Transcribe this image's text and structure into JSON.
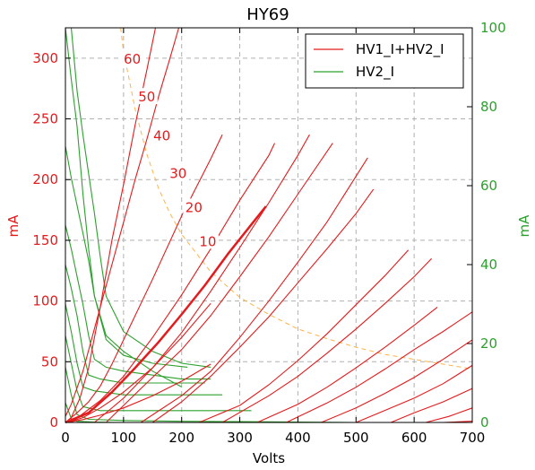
{
  "chart_data": {
    "type": "line",
    "title": "HY69",
    "xlabel": "Volts",
    "ylabel_left": "mA",
    "ylabel_right": "mA",
    "xlim": [
      0,
      700
    ],
    "ylim_left": [
      0,
      325
    ],
    "ylim_right": [
      0,
      100
    ],
    "x_ticks": [
      0,
      100,
      200,
      300,
      400,
      500,
      600,
      700
    ],
    "y_ticks_left": [
      0,
      50,
      100,
      150,
      200,
      250,
      300
    ],
    "y_ticks_right": [
      0,
      20,
      40,
      60,
      80,
      100
    ],
    "grid": true,
    "legend_placement": "top-right",
    "colors": {
      "red": "#e41a1c",
      "green": "#2ca02c",
      "orange_dashed": "#ffb347",
      "left_axis": "#e41a1c",
      "right_axis": "#2ca02c"
    },
    "legend": [
      {
        "label": "HV1_I+HV2_I",
        "color": "#e41a1c"
      },
      {
        "label": "HV2_I",
        "color": "#2ca02c"
      }
    ],
    "curve_labels": [
      {
        "text": "60",
        "x": 115,
        "y": 299
      },
      {
        "text": "50",
        "x": 140,
        "y": 268
      },
      {
        "text": "40",
        "x": 166,
        "y": 236
      },
      {
        "text": "30",
        "x": 194,
        "y": 205
      },
      {
        "text": "20",
        "x": 221,
        "y": 177
      },
      {
        "text": "10",
        "x": 245,
        "y": 149
      }
    ],
    "red_series": [
      {
        "values": [
          [
            0,
            0
          ],
          [
            10,
            0.7
          ],
          [
            30,
            2.4
          ],
          [
            60,
            6
          ],
          [
            100,
            12
          ],
          [
            150,
            22
          ],
          [
            200,
            34
          ],
          [
            250,
            48
          ]
        ]
      },
      {
        "values": [
          [
            0,
            0
          ],
          [
            10,
            1
          ],
          [
            30,
            4
          ],
          [
            60,
            12
          ],
          [
            100,
            25
          ],
          [
            150,
            45
          ],
          [
            200,
            70
          ],
          [
            250,
            98
          ]
        ]
      },
      {
        "values": [
          [
            0,
            0
          ],
          [
            10,
            4
          ],
          [
            25,
            20
          ],
          [
            40,
            45
          ],
          [
            60,
            95
          ],
          [
            80,
            150
          ],
          [
            100,
            196
          ],
          [
            120,
            245
          ],
          [
            140,
            290
          ],
          [
            155,
            325
          ]
        ]
      },
      {
        "values": [
          [
            0,
            5
          ],
          [
            10,
            15
          ],
          [
            30,
            42
          ],
          [
            60,
            95
          ],
          [
            80,
            130
          ],
          [
            100,
            165
          ],
          [
            120,
            200
          ],
          [
            140,
            233
          ],
          [
            160,
            268
          ],
          [
            180,
            300
          ],
          [
            195,
            325
          ]
        ]
      },
      {
        "values": [
          [
            0,
            0
          ],
          [
            20,
            8
          ],
          [
            40,
            17
          ],
          [
            60,
            30
          ],
          [
            80,
            48
          ],
          [
            100,
            68
          ],
          [
            150,
            118
          ],
          [
            200,
            170
          ],
          [
            250,
            217
          ],
          [
            270,
            237
          ]
        ]
      },
      {
        "values": [
          [
            10,
            0
          ],
          [
            60,
            18
          ],
          [
            100,
            38
          ],
          [
            150,
            70
          ],
          [
            200,
            105
          ],
          [
            250,
            143
          ],
          [
            300,
            183
          ],
          [
            350,
            220
          ],
          [
            360,
            230
          ]
        ]
      },
      {
        "values": [
          [
            50,
            0
          ],
          [
            100,
            20
          ],
          [
            150,
            45
          ],
          [
            200,
            74
          ],
          [
            250,
            108
          ],
          [
            300,
            144
          ],
          [
            350,
            181
          ],
          [
            400,
            220
          ],
          [
            420,
            237
          ]
        ]
      },
      {
        "values": [
          [
            70,
            0
          ],
          [
            130,
            28
          ],
          [
            200,
            60
          ],
          [
            250,
            88
          ],
          [
            300,
            120
          ],
          [
            350,
            153
          ],
          [
            400,
            188
          ],
          [
            460,
            230
          ]
        ]
      },
      {
        "values": [
          [
            130,
            0
          ],
          [
            200,
            22
          ],
          [
            250,
            42
          ],
          [
            300,
            70
          ],
          [
            350,
            100
          ],
          [
            400,
            132
          ],
          [
            450,
            165
          ],
          [
            520,
            218
          ]
        ]
      },
      {
        "values": [
          [
            150,
            0
          ],
          [
            200,
            17
          ],
          [
            250,
            38
          ],
          [
            300,
            62
          ],
          [
            350,
            87
          ],
          [
            400,
            115
          ],
          [
            450,
            143
          ],
          [
            500,
            172
          ],
          [
            530,
            192
          ]
        ]
      },
      {
        "values": [
          [
            230,
            0
          ],
          [
            300,
            14
          ],
          [
            350,
            31
          ],
          [
            400,
            51
          ],
          [
            450,
            73
          ],
          [
            500,
            97
          ],
          [
            550,
            121
          ],
          [
            590,
            142
          ]
        ]
      },
      {
        "values": [
          [
            270,
            0
          ],
          [
            350,
            22
          ],
          [
            400,
            38
          ],
          [
            450,
            57
          ],
          [
            500,
            77
          ],
          [
            550,
            98
          ],
          [
            600,
            120
          ],
          [
            630,
            135
          ]
        ]
      },
      {
        "values": [
          [
            330,
            0
          ],
          [
            400,
            15
          ],
          [
            450,
            29
          ],
          [
            500,
            45
          ],
          [
            550,
            62
          ],
          [
            600,
            80
          ],
          [
            640,
            95
          ]
        ]
      },
      {
        "values": [
          [
            380,
            0
          ],
          [
            450,
            16
          ],
          [
            500,
            29
          ],
          [
            550,
            44
          ],
          [
            600,
            60
          ],
          [
            650,
            75
          ],
          [
            700,
            91
          ]
        ]
      },
      {
        "values": [
          [
            440,
            0
          ],
          [
            500,
            12
          ],
          [
            550,
            24
          ],
          [
            600,
            37
          ],
          [
            650,
            52
          ],
          [
            700,
            68
          ]
        ]
      },
      {
        "values": [
          [
            500,
            0
          ],
          [
            550,
            10
          ],
          [
            600,
            20
          ],
          [
            650,
            32
          ],
          [
            700,
            47
          ]
        ]
      },
      {
        "values": [
          [
            560,
            0
          ],
          [
            600,
            8
          ],
          [
            650,
            17
          ],
          [
            700,
            28
          ]
        ]
      },
      {
        "values": [
          [
            620,
            0
          ],
          [
            660,
            5
          ],
          [
            700,
            12
          ]
        ]
      },
      {
        "values": [
          [
            650,
            0
          ],
          [
            700,
            1
          ]
        ]
      }
    ],
    "highlight_series": {
      "values": [
        [
          0,
          0
        ],
        [
          40,
          8
        ],
        [
          80,
          25
        ],
        [
          120,
          45
        ],
        [
          160,
          66
        ],
        [
          200,
          89
        ],
        [
          240,
          113
        ],
        [
          280,
          139
        ],
        [
          320,
          163
        ],
        [
          345,
          178
        ]
      ],
      "color": "#e41a1c",
      "width": 2.5
    },
    "green_series": [
      {
        "values": [
          [
            0,
            100
          ],
          [
            10,
            87
          ],
          [
            20,
            75
          ],
          [
            30,
            58
          ],
          [
            40,
            44
          ],
          [
            50,
            32
          ],
          [
            70,
            22
          ],
          [
            100,
            18
          ],
          [
            150,
            13
          ],
          [
            200,
            9
          ]
        ]
      },
      {
        "values": [
          [
            10,
            100
          ],
          [
            20,
            84
          ],
          [
            30,
            73
          ],
          [
            40,
            63
          ],
          [
            50,
            53
          ],
          [
            60,
            42
          ],
          [
            70,
            32
          ],
          [
            100,
            23
          ],
          [
            150,
            18
          ],
          [
            200,
            15
          ],
          [
            250,
            14
          ]
        ]
      },
      {
        "values": [
          [
            0,
            70
          ],
          [
            10,
            62
          ],
          [
            20,
            55
          ],
          [
            30,
            48
          ],
          [
            40,
            41
          ],
          [
            50,
            32
          ],
          [
            70,
            21
          ],
          [
            100,
            17
          ],
          [
            150,
            15
          ],
          [
            210,
            14
          ]
        ]
      },
      {
        "values": [
          [
            0,
            50
          ],
          [
            10,
            44
          ],
          [
            20,
            37
          ],
          [
            30,
            30
          ],
          [
            40,
            22
          ],
          [
            50,
            16
          ],
          [
            70,
            14
          ],
          [
            100,
            13
          ],
          [
            150,
            12
          ],
          [
            200,
            11
          ],
          [
            250,
            11
          ]
        ]
      },
      {
        "values": [
          [
            0,
            40
          ],
          [
            10,
            34
          ],
          [
            20,
            27
          ],
          [
            30,
            18
          ],
          [
            40,
            12
          ],
          [
            60,
            11
          ],
          [
            100,
            10
          ],
          [
            200,
            10
          ],
          [
            240,
            10
          ]
        ]
      },
      {
        "values": [
          [
            0,
            30
          ],
          [
            10,
            23
          ],
          [
            20,
            15
          ],
          [
            30,
            9
          ],
          [
            50,
            8
          ],
          [
            100,
            7
          ],
          [
            200,
            7
          ],
          [
            270,
            7
          ]
        ]
      },
      {
        "values": [
          [
            0,
            22
          ],
          [
            10,
            15
          ],
          [
            20,
            8
          ],
          [
            30,
            4
          ],
          [
            60,
            3
          ],
          [
            100,
            3
          ],
          [
            200,
            3
          ],
          [
            320,
            3
          ]
        ]
      },
      {
        "values": [
          [
            0,
            14
          ],
          [
            10,
            7
          ],
          [
            20,
            2
          ],
          [
            40,
            0.8
          ],
          [
            100,
            0.5
          ],
          [
            200,
            0.3
          ],
          [
            300,
            0.2
          ],
          [
            400,
            0.1
          ],
          [
            500,
            0
          ],
          [
            700,
            0
          ]
        ]
      },
      {
        "values": [
          [
            0,
            5
          ],
          [
            10,
            1
          ],
          [
            20,
            0.3
          ],
          [
            50,
            0.1
          ],
          [
            100,
            0
          ],
          [
            700,
            0
          ]
        ]
      }
    ],
    "dissipation_curve": {
      "values": [
        [
          95,
          325
        ],
        [
          100,
          305
        ],
        [
          110,
          282
        ],
        [
          120,
          258
        ],
        [
          140,
          221
        ],
        [
          160,
          193
        ],
        [
          180,
          172
        ],
        [
          200,
          155
        ],
        [
          250,
          124
        ],
        [
          300,
          103
        ],
        [
          350,
          89
        ],
        [
          400,
          77
        ],
        [
          450,
          69
        ],
        [
          500,
          62
        ],
        [
          550,
          56
        ],
        [
          600,
          52
        ],
        [
          650,
          48
        ],
        [
          700,
          44
        ]
      ],
      "color": "#ffb347",
      "style": "dashed"
    }
  }
}
